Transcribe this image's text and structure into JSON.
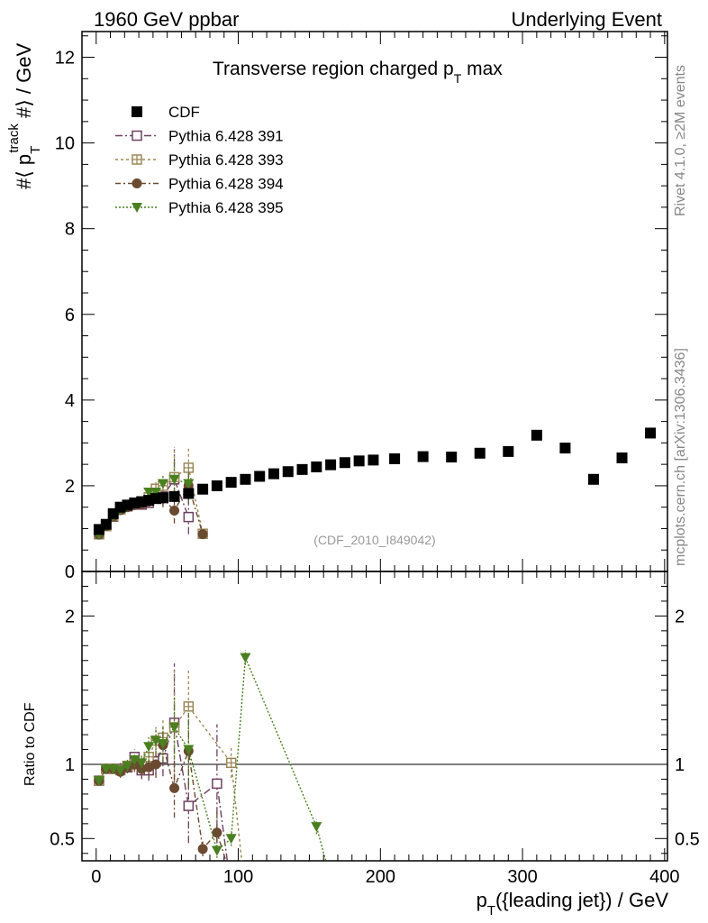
{
  "header": {
    "left": "1960 GeV ppbar",
    "right": "Underlying Event"
  },
  "side_labels": {
    "rivet": "Rivet 4.1.0, ≥2M events",
    "mcplots": "mcplots.cern.ch [arXiv:1306.3436]"
  },
  "chart_data": {
    "type": "scatter",
    "title": "Transverse region charged p_T max",
    "title_main": "Transverse region charged p",
    "title_sub": "T",
    "title_tail": " max",
    "analysis_id": "(CDF_2010_I849042)",
    "xlabel": "p_T({leading jet}) / GeV",
    "xlabel_main": "p",
    "xlabel_sub": "T",
    "xlabel_tail": "({leading jet}) / GeV",
    "ylabel": "#⟨ p_T^track #⟩ / GeV",
    "ylabel_main": "#⟨ p",
    "ylabel_sub": "T",
    "ylabel_sup": "track",
    "ylabel_tail": " #⟩ / GeV",
    "ratio_ylabel": "Ratio to CDF",
    "xlim": [
      -10,
      402
    ],
    "ylim": [
      0,
      12.6
    ],
    "ratio_ylim": [
      0.35,
      2.3
    ],
    "x_ticks": [
      0,
      100,
      200,
      300,
      400
    ],
    "y_ticks": [
      0,
      2,
      4,
      6,
      8,
      10,
      12
    ],
    "ratio_ticks": [
      0.5,
      1,
      2
    ],
    "series": [
      {
        "name": "CDF",
        "marker": "square-filled",
        "color": "#000000",
        "x": [
          2,
          7,
          12,
          17,
          22,
          27,
          32,
          37,
          42,
          47,
          55,
          65,
          75,
          85,
          95,
          105,
          115,
          125,
          135,
          145,
          155,
          165,
          175,
          185,
          195,
          210,
          230,
          250,
          270,
          290,
          310,
          330,
          350,
          370,
          390
        ],
        "y": [
          0.98,
          1.1,
          1.35,
          1.5,
          1.55,
          1.6,
          1.63,
          1.66,
          1.7,
          1.72,
          1.75,
          1.82,
          1.92,
          2.0,
          2.08,
          2.15,
          2.22,
          2.28,
          2.33,
          2.38,
          2.44,
          2.49,
          2.54,
          2.58,
          2.6,
          2.63,
          2.68,
          2.67,
          2.76,
          2.8,
          3.18,
          2.88,
          2.15,
          2.65,
          3.23
        ]
      },
      {
        "name": "Pythia 6.428 391",
        "marker": "square-open",
        "color": "#6e4060",
        "x": [
          2,
          7,
          12,
          17,
          22,
          27,
          32,
          37,
          42,
          47,
          55,
          65
        ],
        "y": [
          0.87,
          1.06,
          1.28,
          1.45,
          1.52,
          1.58,
          1.56,
          1.6,
          1.74,
          1.75,
          2.15,
          1.27
        ],
        "yerr": [
          0.05,
          0.04,
          0.04,
          0.05,
          0.05,
          0.06,
          0.08,
          0.1,
          0.15,
          0.2,
          0.7,
          0.4
        ],
        "ratio_x": [
          2,
          7,
          12,
          17,
          22,
          27,
          32,
          37,
          42,
          47,
          55,
          65,
          85
        ],
        "ratio_y": [
          0.89,
          0.97,
          0.97,
          0.97,
          0.98,
          1.05,
          0.96,
          0.96,
          1.02,
          1.04,
          1.28,
          0.72,
          0.87
        ],
        "ratio_err": [
          0.03,
          0.03,
          0.03,
          0.04,
          0.04,
          0.05,
          0.06,
          0.07,
          0.09,
          0.12,
          0.4,
          0.25,
          0.4
        ]
      },
      {
        "name": "Pythia 6.428 393",
        "marker": "plus-square-open",
        "color": "#9a8858",
        "x": [
          2,
          7,
          12,
          17,
          22,
          27,
          32,
          37,
          42,
          47,
          55,
          65,
          75
        ],
        "y": [
          0.88,
          1.06,
          1.3,
          1.46,
          1.55,
          1.6,
          1.62,
          1.73,
          1.93,
          2.0,
          2.2,
          2.42,
          0.88
        ],
        "yerr": [
          0.05,
          0.04,
          0.04,
          0.05,
          0.05,
          0.06,
          0.08,
          0.1,
          0.15,
          0.2,
          0.7,
          0.5,
          0.1
        ],
        "ratio_x": [
          2,
          7,
          12,
          17,
          22,
          27,
          32,
          37,
          42,
          47,
          55,
          65,
          95
        ],
        "ratio_y": [
          0.89,
          0.97,
          0.97,
          0.96,
          0.99,
          1.0,
          0.99,
          1.05,
          1.16,
          1.18,
          1.25,
          1.39,
          1.01
        ],
        "ratio_err": [
          0.03,
          0.03,
          0.03,
          0.04,
          0.04,
          0.05,
          0.06,
          0.07,
          0.09,
          0.12,
          0.4,
          0.25,
          0.1
        ]
      },
      {
        "name": "Pythia 6.428 394",
        "marker": "circle-filled",
        "color": "#6a4a30",
        "x": [
          2,
          7,
          12,
          17,
          22,
          27,
          32,
          37,
          42,
          47,
          55,
          65,
          75
        ],
        "y": [
          0.86,
          1.06,
          1.28,
          1.43,
          1.5,
          1.55,
          1.57,
          1.63,
          1.76,
          1.7,
          1.42,
          2.0,
          0.87
        ],
        "yerr": [
          0.05,
          0.04,
          0.04,
          0.05,
          0.05,
          0.06,
          0.08,
          0.1,
          0.15,
          0.2,
          0.3,
          0.4,
          0.1
        ],
        "ratio_x": [
          2,
          7,
          12,
          17,
          22,
          27,
          32,
          37,
          42,
          47,
          55,
          65,
          75,
          85
        ],
        "ratio_y": [
          0.89,
          0.97,
          0.97,
          0.95,
          0.98,
          1.0,
          0.97,
          0.98,
          1.0,
          1.13,
          0.84,
          1.09,
          0.43,
          0.54
        ],
        "ratio_err": [
          0.03,
          0.03,
          0.03,
          0.04,
          0.04,
          0.05,
          0.06,
          0.07,
          0.09,
          0.12,
          0.2,
          0.25,
          0.05,
          0.15
        ]
      },
      {
        "name": "Pythia 6.428 395",
        "marker": "triangle-down-filled",
        "color": "#4a8020",
        "x": [
          2,
          7,
          12,
          17,
          22,
          27,
          32,
          37,
          42,
          47,
          55,
          65
        ],
        "y": [
          0.86,
          1.07,
          1.29,
          1.44,
          1.53,
          1.6,
          1.63,
          1.85,
          1.85,
          2.05,
          2.15,
          2.05
        ],
        "yerr": [
          0.05,
          0.04,
          0.04,
          0.05,
          0.05,
          0.06,
          0.08,
          0.1,
          0.15,
          0.2,
          0.4,
          0.4
        ],
        "ratio_x": [
          2,
          7,
          12,
          17,
          22,
          27,
          32,
          37,
          42,
          47,
          55,
          65,
          85,
          95,
          105,
          155
        ],
        "ratio_y": [
          0.89,
          0.97,
          0.97,
          0.96,
          0.99,
          1.03,
          1.01,
          1.12,
          1.16,
          1.14,
          1.25,
          1.1,
          0.42,
          0.5,
          1.72,
          0.58
        ],
        "ratio_err": [
          0.03,
          0.03,
          0.03,
          0.04,
          0.04,
          0.05,
          0.06,
          0.07,
          0.09,
          0.12,
          0.2,
          0.25,
          0.05,
          0.05,
          0.05,
          0.05
        ]
      }
    ]
  }
}
